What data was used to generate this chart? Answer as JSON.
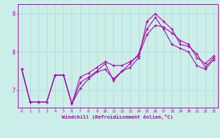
{
  "xlabel": "Windchill (Refroidissement éolien,°C)",
  "bg_color": "#cceee8",
  "line_color": "#aa00aa",
  "grid_color": "#aadddd",
  "xlim": [
    -0.5,
    23.5
  ],
  "ylim": [
    6.55,
    9.25
  ],
  "yticks": [
    7,
    8,
    9
  ],
  "xticks": [
    0,
    1,
    2,
    3,
    4,
    5,
    6,
    7,
    8,
    9,
    10,
    11,
    12,
    13,
    14,
    15,
    16,
    17,
    18,
    19,
    20,
    21,
    22,
    23
  ],
  "line1_x": [
    0,
    1,
    2,
    3,
    4,
    5,
    6,
    7,
    8,
    9,
    10,
    11,
    12,
    13,
    14,
    15,
    16,
    17,
    18,
    19,
    20,
    21,
    22,
    23
  ],
  "line1_y": [
    7.55,
    6.7,
    6.7,
    6.7,
    7.4,
    7.4,
    6.65,
    7.35,
    7.45,
    7.6,
    7.75,
    7.65,
    7.65,
    7.75,
    7.9,
    8.45,
    8.7,
    8.65,
    8.5,
    8.3,
    8.2,
    7.85,
    7.7,
    7.9
  ],
  "line2_x": [
    0,
    1,
    2,
    3,
    4,
    5,
    6,
    7,
    8,
    9,
    10,
    11,
    12,
    13,
    14,
    15,
    16,
    17,
    18,
    19,
    20,
    21,
    22,
    23
  ],
  "line2_y": [
    7.55,
    6.7,
    6.7,
    6.7,
    7.4,
    7.4,
    6.65,
    7.2,
    7.35,
    7.5,
    7.7,
    7.25,
    7.5,
    7.6,
    7.85,
    8.8,
    9.0,
    8.8,
    8.6,
    8.2,
    8.15,
    7.95,
    7.6,
    7.85
  ],
  "line3_x": [
    0,
    1,
    2,
    3,
    4,
    5,
    6,
    7,
    8,
    9,
    10,
    11,
    12,
    13,
    14,
    15,
    16,
    17,
    18,
    19,
    20,
    21,
    22,
    23
  ],
  "line3_y": [
    7.55,
    6.7,
    6.7,
    6.7,
    7.4,
    7.4,
    6.65,
    7.05,
    7.3,
    7.48,
    7.55,
    7.3,
    7.5,
    7.7,
    7.95,
    8.6,
    8.9,
    8.6,
    8.2,
    8.1,
    8.0,
    7.65,
    7.55,
    7.8
  ]
}
